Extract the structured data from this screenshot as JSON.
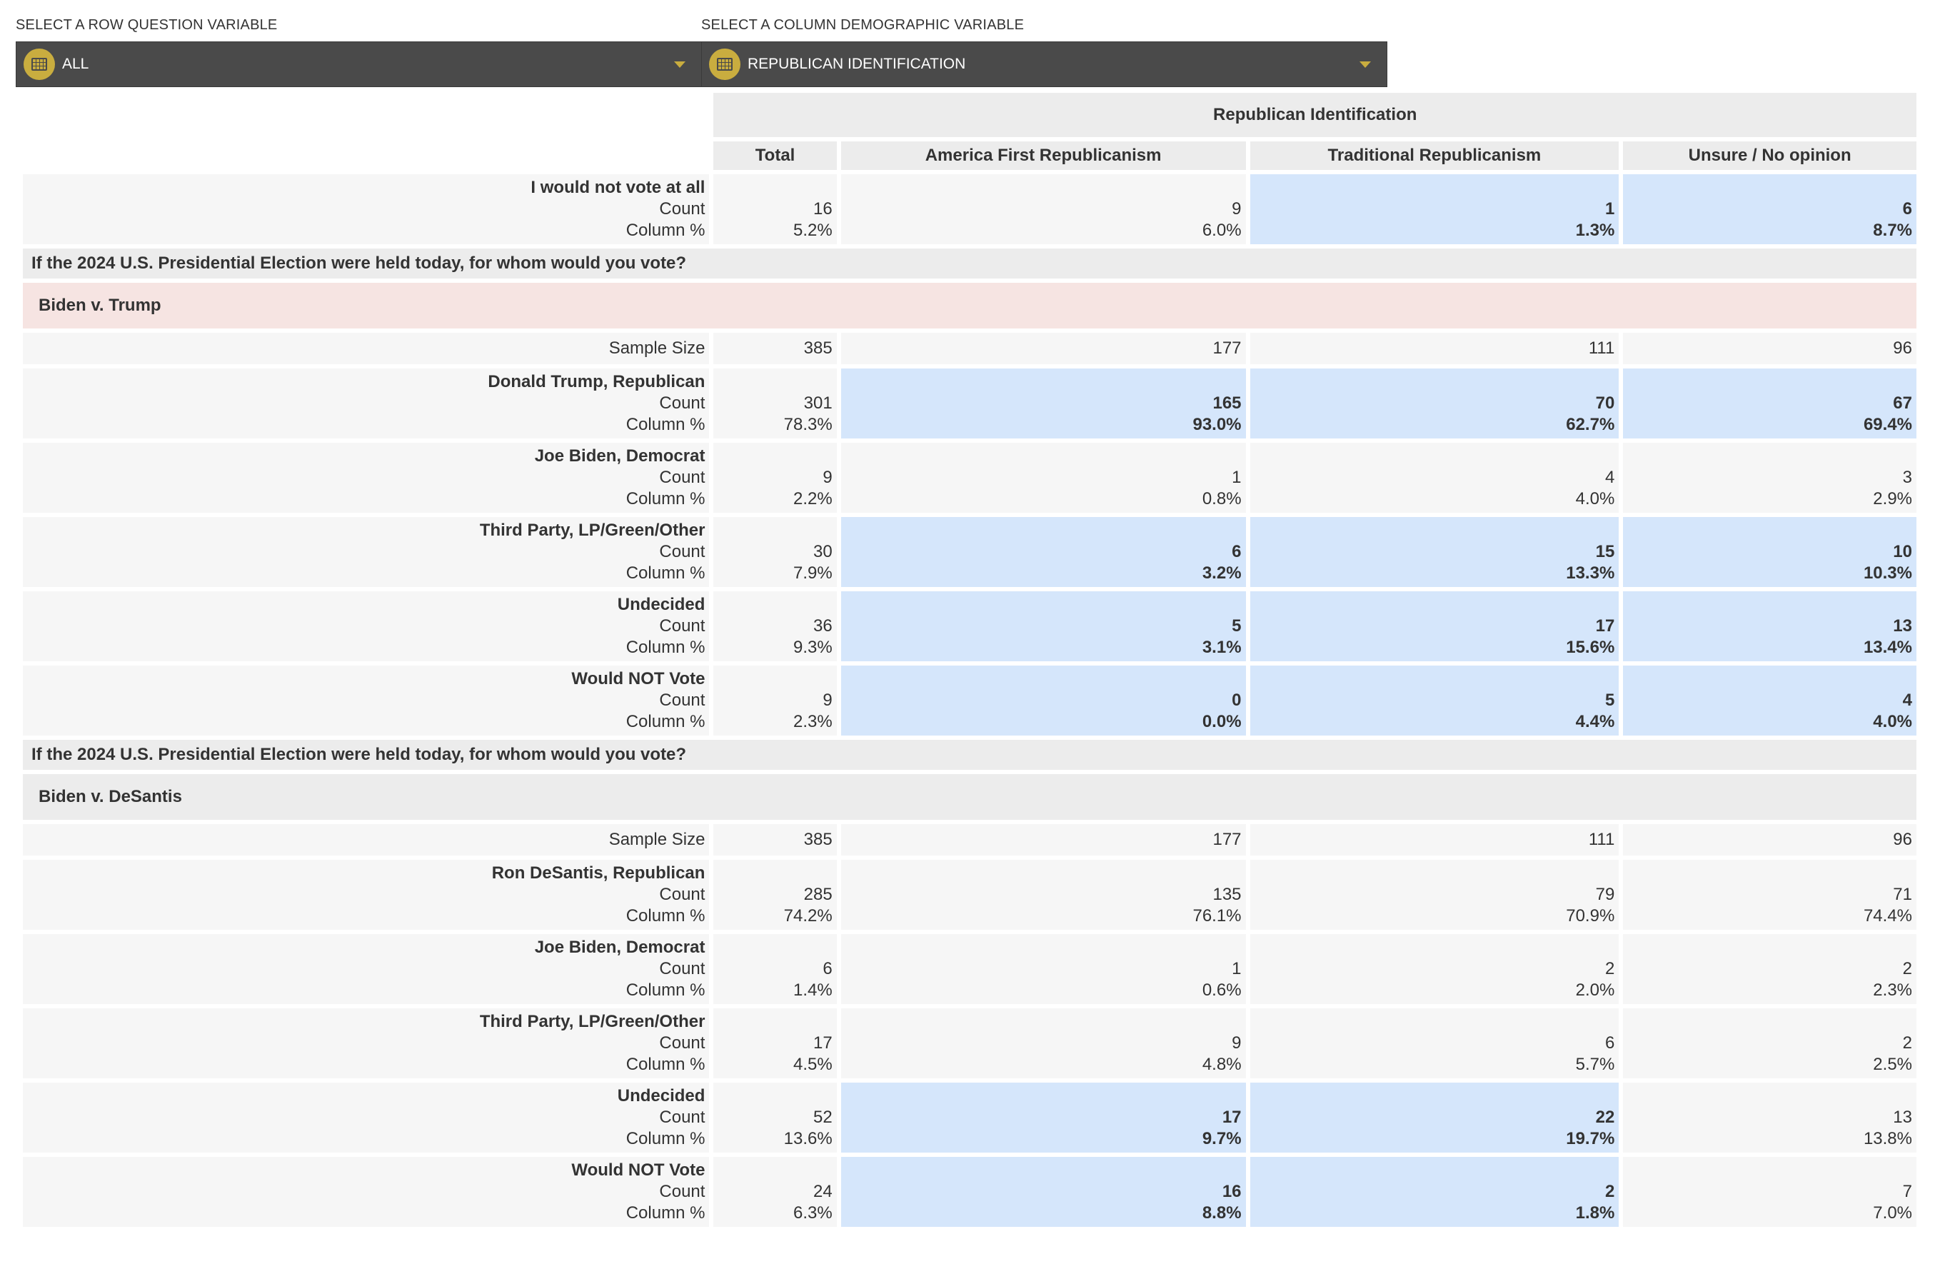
{
  "selectors": {
    "row": {
      "label": "SELECT A ROW QUESTION VARIABLE",
      "value": "ALL"
    },
    "column": {
      "label": "SELECT A COLUMN DEMOGRAPHIC VARIABLE",
      "value": "REPUBLICAN IDENTIFICATION"
    }
  },
  "table": {
    "group_header": "Republican Identification",
    "columns": [
      "Total",
      "America First Republicanism",
      "Traditional Republicanism",
      "Unsure / No opinion"
    ],
    "metric_labels": {
      "count": "Count",
      "pct": "Column %",
      "sample": "Sample Size"
    },
    "colors": {
      "highlight": "#d5e6fb",
      "section_pink": "#f6e4e2",
      "header_grey": "#ececec"
    },
    "top_rows": [
      {
        "answer": "I would not vote at all",
        "counts": [
          "16",
          "9",
          "1",
          "6"
        ],
        "pcts": [
          "5.2%",
          "6.0%",
          "1.3%",
          "8.7%"
        ],
        "highlight": [
          false,
          false,
          true,
          true
        ]
      }
    ],
    "sections": [
      {
        "question": "If the 2024 U.S. Presidential Election were held today, for whom would you vote?",
        "subtitle": "Biden v. Trump",
        "style": "pink",
        "sample": [
          "385",
          "177",
          "111",
          "96"
        ],
        "rows": [
          {
            "answer": "Donald Trump, Republican",
            "counts": [
              "301",
              "165",
              "70",
              "67"
            ],
            "pcts": [
              "78.3%",
              "93.0%",
              "62.7%",
              "69.4%"
            ],
            "highlight": [
              false,
              true,
              true,
              true
            ]
          },
          {
            "answer": "Joe Biden, Democrat",
            "counts": [
              "9",
              "1",
              "4",
              "3"
            ],
            "pcts": [
              "2.2%",
              "0.8%",
              "4.0%",
              "2.9%"
            ],
            "highlight": [
              false,
              false,
              false,
              false
            ]
          },
          {
            "answer": "Third Party, LP/Green/Other",
            "counts": [
              "30",
              "6",
              "15",
              "10"
            ],
            "pcts": [
              "7.9%",
              "3.2%",
              "13.3%",
              "10.3%"
            ],
            "highlight": [
              false,
              true,
              true,
              true
            ]
          },
          {
            "answer": "Undecided",
            "counts": [
              "36",
              "5",
              "17",
              "13"
            ],
            "pcts": [
              "9.3%",
              "3.1%",
              "15.6%",
              "13.4%"
            ],
            "highlight": [
              false,
              true,
              true,
              true
            ]
          },
          {
            "answer": "Would NOT Vote",
            "counts": [
              "9",
              "0",
              "5",
              "4"
            ],
            "pcts": [
              "2.3%",
              "0.0%",
              "4.4%",
              "4.0%"
            ],
            "highlight": [
              false,
              true,
              true,
              true
            ]
          }
        ]
      },
      {
        "question": "If the 2024 U.S. Presidential Election were held today, for whom would you vote?",
        "subtitle": "Biden v. DeSantis",
        "style": "grey",
        "sample": [
          "385",
          "177",
          "111",
          "96"
        ],
        "rows": [
          {
            "answer": "Ron DeSantis, Republican",
            "counts": [
              "285",
              "135",
              "79",
              "71"
            ],
            "pcts": [
              "74.2%",
              "76.1%",
              "70.9%",
              "74.4%"
            ],
            "highlight": [
              false,
              false,
              false,
              false
            ]
          },
          {
            "answer": "Joe Biden, Democrat",
            "counts": [
              "6",
              "1",
              "2",
              "2"
            ],
            "pcts": [
              "1.4%",
              "0.6%",
              "2.0%",
              "2.3%"
            ],
            "highlight": [
              false,
              false,
              false,
              false
            ]
          },
          {
            "answer": "Third Party, LP/Green/Other",
            "counts": [
              "17",
              "9",
              "6",
              "2"
            ],
            "pcts": [
              "4.5%",
              "4.8%",
              "5.7%",
              "2.5%"
            ],
            "highlight": [
              false,
              false,
              false,
              false
            ]
          },
          {
            "answer": "Undecided",
            "counts": [
              "52",
              "17",
              "22",
              "13"
            ],
            "pcts": [
              "13.6%",
              "9.7%",
              "19.7%",
              "13.8%"
            ],
            "highlight": [
              false,
              true,
              true,
              false
            ]
          },
          {
            "answer": "Would NOT Vote",
            "counts": [
              "24",
              "16",
              "2",
              "7"
            ],
            "pcts": [
              "6.3%",
              "8.8%",
              "1.8%",
              "7.0%"
            ],
            "highlight": [
              false,
              true,
              true,
              false
            ]
          }
        ]
      }
    ]
  }
}
